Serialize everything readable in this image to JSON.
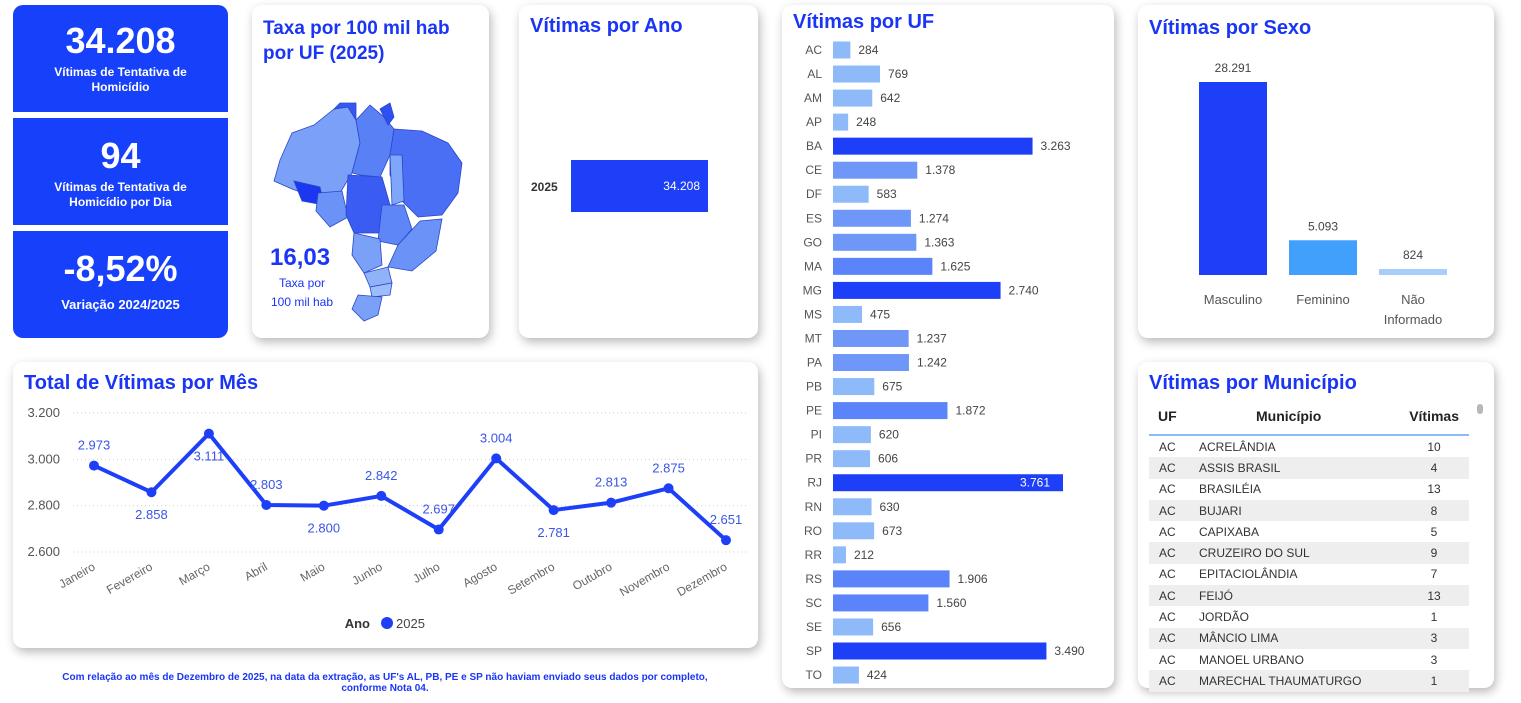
{
  "kpis": [
    {
      "value": "34.208",
      "label": "Vítimas de Tentativa de Homicídio"
    },
    {
      "value": "94",
      "label": "Vítimas de Tentativa de Homicídio por Dia"
    },
    {
      "value": "-8,52%",
      "label": "Variação 2024/2025"
    }
  ],
  "map_card": {
    "title": "Taxa por 100 mil hab por UF (2025)",
    "value": "16,03",
    "label_line1": "Taxa por",
    "label_line2": "100 mil hab"
  },
  "year_card": {
    "title": "Vítimas por Ano",
    "year": "2025",
    "value_label": "34.208",
    "value": 34208
  },
  "uf_card": {
    "title": "Vítimas por UF"
  },
  "sex_card": {
    "title": "Vítimas por Sexo"
  },
  "month_card": {
    "title": "Total de Vítimas por Mês",
    "legend_title": "Ano",
    "legend_item": "2025"
  },
  "mun_card": {
    "title": "Vítimas por Município",
    "columns": [
      "UF",
      "Município",
      "Vítimas"
    ],
    "rows": [
      {
        "uf": "AC",
        "mun": "ACRELÂNDIA",
        "v": "10"
      },
      {
        "uf": "AC",
        "mun": "ASSIS BRASIL",
        "v": "4"
      },
      {
        "uf": "AC",
        "mun": "BRASILÉIA",
        "v": "13"
      },
      {
        "uf": "AC",
        "mun": "BUJARI",
        "v": "8"
      },
      {
        "uf": "AC",
        "mun": "CAPIXABA",
        "v": "5"
      },
      {
        "uf": "AC",
        "mun": "CRUZEIRO DO SUL",
        "v": "9"
      },
      {
        "uf": "AC",
        "mun": "EPITACIOLÂNDIA",
        "v": "7"
      },
      {
        "uf": "AC",
        "mun": "FEIJÓ",
        "v": "13"
      },
      {
        "uf": "AC",
        "mun": "JORDÃO",
        "v": "1"
      },
      {
        "uf": "AC",
        "mun": "MÂNCIO LIMA",
        "v": "3"
      },
      {
        "uf": "AC",
        "mun": "MANOEL URBANO",
        "v": "3"
      },
      {
        "uf": "AC",
        "mun": "MARECHAL THAUMATURGO",
        "v": "1"
      }
    ]
  },
  "footnote": "Com relação ao mês de Dezembro de 2025, na data da extração, as UF's AL, PB, PE e SP não haviam enviado seus dados por completo, conforme Nota 04.",
  "colors": {
    "accent": "#1a35f5",
    "kpi_bg": "#1640fa",
    "bar_dark": "#1e3ff8",
    "bar_mid": "#5b84fa",
    "bar_light": "#8fbaf9",
    "feminino": "#41a0fb",
    "nao_informado": "#a9ccfb"
  },
  "chart_data": [
    {
      "type": "bar",
      "orientation": "horizontal",
      "title": "Vítimas por Ano",
      "categories": [
        "2025"
      ],
      "values": [
        34208
      ],
      "labels": [
        "34.208"
      ]
    },
    {
      "type": "bar",
      "orientation": "horizontal",
      "title": "Vítimas por UF",
      "categories": [
        "AC",
        "AL",
        "AM",
        "AP",
        "BA",
        "CE",
        "DF",
        "ES",
        "GO",
        "MA",
        "MG",
        "MS",
        "MT",
        "PA",
        "PB",
        "PE",
        "PI",
        "PR",
        "RJ",
        "RN",
        "RO",
        "RR",
        "RS",
        "SC",
        "SE",
        "SP",
        "TO"
      ],
      "values": [
        284,
        769,
        642,
        248,
        3263,
        1378,
        583,
        1274,
        1363,
        1625,
        2740,
        475,
        1237,
        1242,
        675,
        1872,
        620,
        606,
        3761,
        630,
        673,
        212,
        1906,
        1560,
        656,
        3490,
        424
      ],
      "labels": [
        "284",
        "769",
        "642",
        "248",
        "3.263",
        "1.378",
        "583",
        "1.274",
        "1.363",
        "1.625",
        "2.740",
        "475",
        "1.237",
        "1.242",
        "675",
        "1.872",
        "620",
        "606",
        "3.761",
        "630",
        "673",
        "212",
        "1.906",
        "1.560",
        "656",
        "3.490",
        "424"
      ]
    },
    {
      "type": "bar",
      "title": "Vítimas por Sexo",
      "categories": [
        "Masculino",
        "Feminino",
        "Não Informado"
      ],
      "category_lines": [
        [
          "Masculino"
        ],
        [
          "Feminino"
        ],
        [
          "Não",
          "Informado"
        ]
      ],
      "values": [
        28291,
        5093,
        824
      ],
      "labels": [
        "28.291",
        "5.093",
        "824"
      ]
    },
    {
      "type": "line",
      "title": "Total de Vítimas por Mês",
      "categories": [
        "Janeiro",
        "Fevereiro",
        "Março",
        "Abril",
        "Maio",
        "Junho",
        "Julho",
        "Agosto",
        "Setembro",
        "Outubro",
        "Novembro",
        "Dezembro"
      ],
      "series": [
        {
          "name": "2025",
          "values": [
            2973,
            2858,
            3111,
            2803,
            2800,
            2842,
            2697,
            3004,
            2781,
            2813,
            2875,
            2651
          ]
        }
      ],
      "labels": [
        "2.973",
        "2.858",
        "3.111",
        "2.803",
        "2.800",
        "2.842",
        "2.697",
        "3.004",
        "2.781",
        "2.813",
        "2.875",
        "2.651"
      ],
      "yticks": [
        2600,
        2800,
        3000,
        3200
      ],
      "ytick_labels": [
        "2.600",
        "2.800",
        "3.000",
        "3.200"
      ],
      "ylim": [
        2600,
        3200
      ],
      "grid": true,
      "legend": "bottom"
    }
  ]
}
